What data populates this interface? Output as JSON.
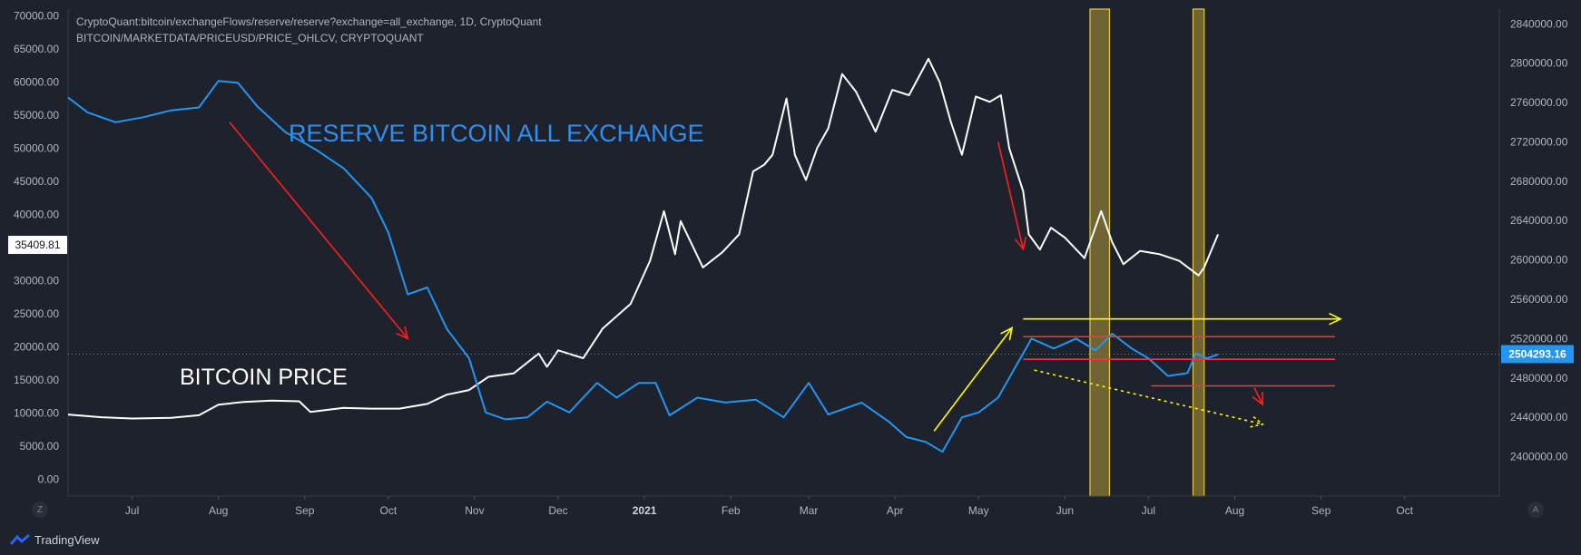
{
  "header": {
    "legend_line1": "CryptoQuant:bitcoin/exchangeFlows/reserve/reserve?exchange=all_exchange, 1D, CryptoQuant",
    "legend_line2": "BITCOIN/MARKETDATA/PRICEUSD/PRICE_OHLCV, CRYPTOQUANT"
  },
  "annotations": {
    "reserve_label": "RESERVE BITCOIN ALL EXCHANGE",
    "price_label": "BITCOIN PRICE"
  },
  "footer": {
    "brand": "TradingView",
    "left_scale_button": "Z",
    "right_scale_button": "A"
  },
  "colors": {
    "background": "#1e222d",
    "price_line": "#ffffff",
    "reserve_line": "#2196f3",
    "annotation_arrow_red": "#ff1e1e",
    "annotation_arrow_yellow": "#ffff00",
    "level_line_red": "#f23645",
    "highlight_band": "#d4b93a"
  },
  "chart_data": {
    "type": "line",
    "x_ticks": [
      "Jul",
      "Aug",
      "Sep",
      "Oct",
      "Nov",
      "Dec",
      "2021",
      "Feb",
      "Mar",
      "Apr",
      "May",
      "Jun",
      "Jul",
      "Aug",
      "Sep",
      "Oct"
    ],
    "x_range": [
      "2020-06-08",
      "2021-11-04"
    ],
    "left_axis": {
      "range": [
        -2500,
        71000
      ],
      "ticks": [
        0,
        5000,
        10000,
        15000,
        20000,
        25000,
        30000,
        35000,
        40000,
        45000,
        50000,
        55000,
        60000,
        65000,
        70000
      ],
      "tick_labels": [
        "0.00",
        "5000.00",
        "10000.00",
        "15000.00",
        "20000.00",
        "25000.00",
        "30000.00",
        "35000.00",
        "40000.00",
        "45000.00",
        "50000.00",
        "55000.00",
        "60000.00",
        "65000.00",
        "70000.00"
      ],
      "current_value": "35409.81"
    },
    "right_axis": {
      "range": [
        2360000,
        2855000
      ],
      "ticks": [
        2400000,
        2440000,
        2480000,
        2520000,
        2560000,
        2600000,
        2640000,
        2680000,
        2720000,
        2760000,
        2800000,
        2840000
      ],
      "tick_labels": [
        "2400000.00",
        "2440000.00",
        "2480000.00",
        "2520000.00",
        "2560000.00",
        "2600000.00",
        "2640000.00",
        "2680000.00",
        "2720000.00",
        "2760000.00",
        "2800000.00",
        "2840000.00"
      ],
      "current_value": "2504293.16",
      "current_value_display": "2504293.16"
    },
    "series": [
      {
        "axis": "left",
        "color": "#ffffff",
        "points": [
          [
            "2020-06-08",
            9800
          ],
          [
            "2020-06-20",
            9400
          ],
          [
            "2020-07-01",
            9200
          ],
          [
            "2020-07-15",
            9300
          ],
          [
            "2020-07-25",
            9700
          ],
          [
            "2020-08-01",
            11300
          ],
          [
            "2020-08-10",
            11700
          ],
          [
            "2020-08-20",
            11900
          ],
          [
            "2020-08-30",
            11800
          ],
          [
            "2020-09-03",
            10200
          ],
          [
            "2020-09-15",
            10800
          ],
          [
            "2020-09-25",
            10700
          ],
          [
            "2020-10-05",
            10700
          ],
          [
            "2020-10-15",
            11400
          ],
          [
            "2020-10-22",
            12800
          ],
          [
            "2020-10-30",
            13500
          ],
          [
            "2020-11-06",
            15500
          ],
          [
            "2020-11-15",
            16000
          ],
          [
            "2020-11-24",
            19000
          ],
          [
            "2020-11-27",
            17000
          ],
          [
            "2020-12-01",
            19500
          ],
          [
            "2020-12-10",
            18300
          ],
          [
            "2020-12-17",
            22800
          ],
          [
            "2020-12-27",
            26500
          ],
          [
            "2021-01-03",
            33000
          ],
          [
            "2021-01-08",
            40500
          ],
          [
            "2021-01-12",
            34000
          ],
          [
            "2021-01-14",
            39000
          ],
          [
            "2021-01-22",
            32000
          ],
          [
            "2021-01-29",
            34300
          ],
          [
            "2021-02-04",
            37000
          ],
          [
            "2021-02-09",
            46500
          ],
          [
            "2021-02-13",
            47500
          ],
          [
            "2021-02-16",
            49000
          ],
          [
            "2021-02-21",
            57500
          ],
          [
            "2021-02-24",
            49000
          ],
          [
            "2021-02-28",
            45200
          ],
          [
            "2021-03-04",
            50000
          ],
          [
            "2021-03-08",
            53000
          ],
          [
            "2021-03-13",
            61200
          ],
          [
            "2021-03-18",
            58500
          ],
          [
            "2021-03-25",
            52500
          ],
          [
            "2021-03-31",
            58800
          ],
          [
            "2021-04-06",
            58000
          ],
          [
            "2021-04-13",
            63500
          ],
          [
            "2021-04-17",
            60000
          ],
          [
            "2021-04-21",
            54000
          ],
          [
            "2021-04-25",
            49000
          ],
          [
            "2021-04-30",
            57800
          ],
          [
            "2021-05-05",
            57000
          ],
          [
            "2021-05-09",
            58000
          ],
          [
            "2021-05-12",
            50000
          ],
          [
            "2021-05-17",
            43500
          ],
          [
            "2021-05-19",
            37000
          ],
          [
            "2021-05-23",
            34700
          ],
          [
            "2021-05-27",
            38000
          ],
          [
            "2021-06-01",
            36500
          ],
          [
            "2021-06-08",
            33400
          ],
          [
            "2021-06-14",
            40500
          ],
          [
            "2021-06-18",
            35800
          ],
          [
            "2021-06-22",
            32500
          ],
          [
            "2021-06-28",
            34500
          ],
          [
            "2021-07-05",
            34000
          ],
          [
            "2021-07-12",
            33000
          ],
          [
            "2021-07-19",
            30800
          ],
          [
            "2021-07-21",
            32000
          ],
          [
            "2021-07-26",
            37000
          ]
        ]
      },
      {
        "axis": "right",
        "color": "#2196f3",
        "points": [
          [
            "2020-06-08",
            2765000
          ],
          [
            "2020-06-15",
            2750000
          ],
          [
            "2020-06-25",
            2740000
          ],
          [
            "2020-07-05",
            2745000
          ],
          [
            "2020-07-15",
            2752000
          ],
          [
            "2020-07-25",
            2755000
          ],
          [
            "2020-08-01",
            2782000
          ],
          [
            "2020-08-08",
            2780000
          ],
          [
            "2020-08-15",
            2756000
          ],
          [
            "2020-08-25",
            2730000
          ],
          [
            "2020-09-05",
            2712000
          ],
          [
            "2020-09-15",
            2693000
          ],
          [
            "2020-09-25",
            2663000
          ],
          [
            "2020-10-01",
            2628000
          ],
          [
            "2020-10-08",
            2565000
          ],
          [
            "2020-10-15",
            2572000
          ],
          [
            "2020-10-22",
            2530000
          ],
          [
            "2020-10-30",
            2500000
          ],
          [
            "2020-11-05",
            2445000
          ],
          [
            "2020-11-12",
            2438000
          ],
          [
            "2020-11-20",
            2440000
          ],
          [
            "2020-11-27",
            2456000
          ],
          [
            "2020-12-05",
            2445000
          ],
          [
            "2020-12-15",
            2475000
          ],
          [
            "2020-12-22",
            2460000
          ],
          [
            "2020-12-30",
            2475000
          ],
          [
            "2021-01-05",
            2475000
          ],
          [
            "2021-01-10",
            2442000
          ],
          [
            "2021-01-20",
            2460000
          ],
          [
            "2021-01-30",
            2455000
          ],
          [
            "2021-02-10",
            2458000
          ],
          [
            "2021-02-20",
            2440000
          ],
          [
            "2021-03-01",
            2475000
          ],
          [
            "2021-03-08",
            2443000
          ],
          [
            "2021-03-20",
            2455000
          ],
          [
            "2021-03-30",
            2435000
          ],
          [
            "2021-04-05",
            2420000
          ],
          [
            "2021-04-12",
            2415000
          ],
          [
            "2021-04-18",
            2405000
          ],
          [
            "2021-04-25",
            2440000
          ],
          [
            "2021-05-01",
            2445000
          ],
          [
            "2021-05-08",
            2460000
          ],
          [
            "2021-05-15",
            2495000
          ],
          [
            "2021-05-20",
            2520000
          ],
          [
            "2021-05-28",
            2510000
          ],
          [
            "2021-06-05",
            2520000
          ],
          [
            "2021-06-12",
            2508000
          ],
          [
            "2021-06-18",
            2525000
          ],
          [
            "2021-06-25",
            2510000
          ],
          [
            "2021-07-01",
            2500000
          ],
          [
            "2021-07-08",
            2482000
          ],
          [
            "2021-07-15",
            2485000
          ],
          [
            "2021-07-18",
            2505000
          ],
          [
            "2021-07-22",
            2500000
          ],
          [
            "2021-07-26",
            2504000
          ]
        ]
      }
    ],
    "highlight_bands": [
      [
        "2021-06-10",
        "2021-06-17"
      ],
      [
        "2021-07-17",
        "2021-07-21"
      ]
    ],
    "horizontal_levels": [
      {
        "value": 2522000,
        "from": "2021-05-17",
        "to": "2021-09-06"
      },
      {
        "value": 2499000,
        "from": "2021-05-17",
        "to": "2021-09-06"
      },
      {
        "value": 2472000,
        "from": "2021-07-02",
        "to": "2021-09-06"
      }
    ],
    "arrows": [
      {
        "color": "#ff1e1e",
        "from": [
          "2020-08-05",
          2740000
        ],
        "to": [
          "2020-10-08",
          2520000
        ],
        "axis": "right"
      },
      {
        "color": "#ff1e1e",
        "from": [
          "2021-05-08",
          2720000
        ],
        "to": [
          "2021-05-17",
          2611000
        ],
        "axis": "right"
      },
      {
        "color": "#ffff00",
        "from": [
          "2021-04-15",
          2426000
        ],
        "to": [
          "2021-05-13",
          2531000
        ],
        "axis": "right"
      },
      {
        "color": "#ffff00",
        "from": [
          "2021-05-17",
          2540000
        ],
        "to": [
          "2021-09-08",
          2540000
        ],
        "axis": "right"
      },
      {
        "color": "#ffff00",
        "dashed": true,
        "from": [
          "2021-05-21",
          2488000
        ],
        "to": [
          "2021-08-11",
          2433000
        ],
        "axis": "right"
      },
      {
        "color": "#ff1e1e",
        "from": [
          "2021-08-08",
          2470000
        ],
        "to": [
          "2021-08-11",
          2453000
        ],
        "axis": "right"
      }
    ]
  }
}
